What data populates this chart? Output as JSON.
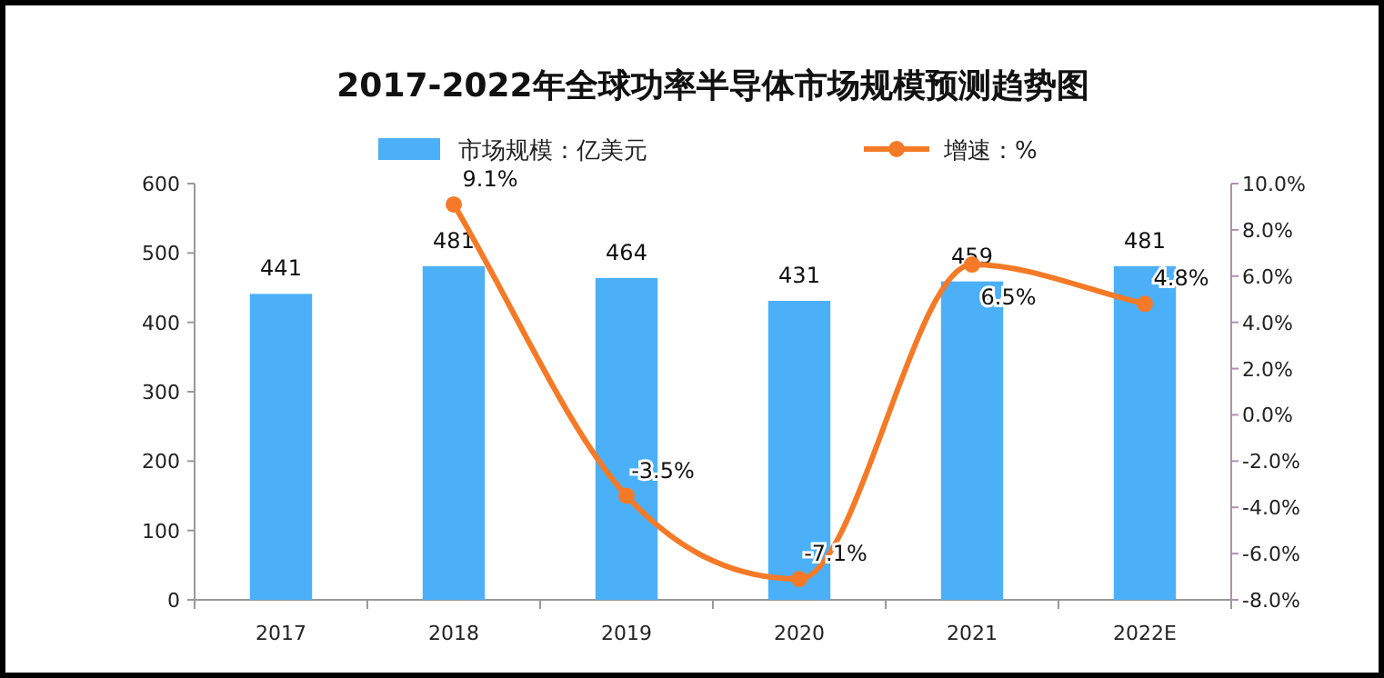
{
  "chart_data": {
    "type": "bar",
    "title": "2017-2022年全球功率半导体市场规模预测趋势图",
    "categories": [
      "2017",
      "2018",
      "2019",
      "2020",
      "2021",
      "2022E"
    ],
    "series": [
      {
        "name": "市场规模：亿美元",
        "color": "#4cb0f9",
        "values": [
          441,
          481,
          464,
          431,
          459,
          481
        ],
        "value_labels": [
          "441",
          "481",
          "464",
          "431",
          "459",
          "481"
        ]
      },
      {
        "name": "增速：%",
        "type": "line",
        "axis": "y2",
        "color": "#f47a27",
        "marker": "circle",
        "values": [
          null,
          9.1,
          -3.5,
          -7.1,
          6.5,
          4.8
        ],
        "value_labels": [
          null,
          "9.1%",
          "-3.5%",
          "-7.1%",
          "6.5%",
          "4.8%"
        ]
      }
    ],
    "ylim": [
      0,
      600
    ],
    "yticks": [
      0,
      100,
      200,
      300,
      400,
      500,
      600
    ],
    "y2lim": [
      -8,
      10
    ],
    "y2ticks": [
      {
        "value": 10,
        "label": "10.0%"
      },
      {
        "value": 8,
        "label": "8.0%"
      },
      {
        "value": 6,
        "label": "6.0%"
      },
      {
        "value": 4,
        "label": "4.0%"
      },
      {
        "value": 2,
        "label": "2.0%"
      },
      {
        "value": 0,
        "label": "0.0%"
      },
      {
        "value": -2,
        "label": "-2.0%"
      },
      {
        "value": -4,
        "label": "-4.0%"
      },
      {
        "value": -6,
        "label": "-6.0%"
      },
      {
        "value": -8,
        "label": "-8.0%"
      }
    ],
    "grid": false,
    "legend": "top"
  }
}
